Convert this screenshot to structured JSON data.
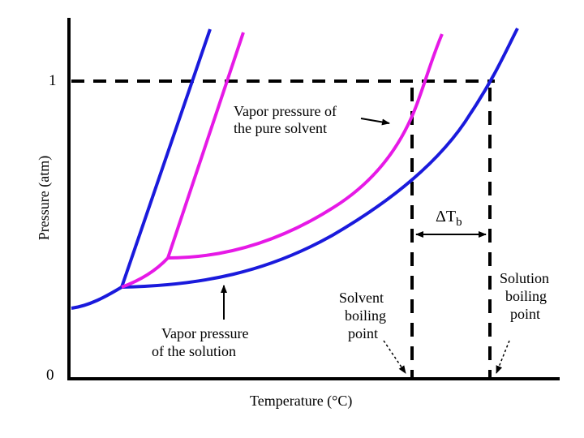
{
  "axes": {
    "x_label": "Temperature (°C)",
    "y_label": "Pressure (atm)",
    "y_tick_top": "1",
    "y_tick_bottom": "0"
  },
  "annotations": {
    "pure_solvent_line1": "Vapor pressure of",
    "pure_solvent_line2": "the pure solvent",
    "solution_line1": "Vapor pressure",
    "solution_line2": "of the solution",
    "solvent_bp_line1": "Solvent",
    "solvent_bp_line2": "boiling",
    "solvent_bp_line3": "point",
    "solution_bp_line1": "Solution",
    "solution_bp_line2": "boiling",
    "solution_bp_line3": "point",
    "delta_t_main": "ΔT",
    "delta_t_sub": "b"
  },
  "colors": {
    "solution_curves": "#1a1adc",
    "pure_solvent_curves": "#e619e6",
    "axes": "#000000"
  }
}
